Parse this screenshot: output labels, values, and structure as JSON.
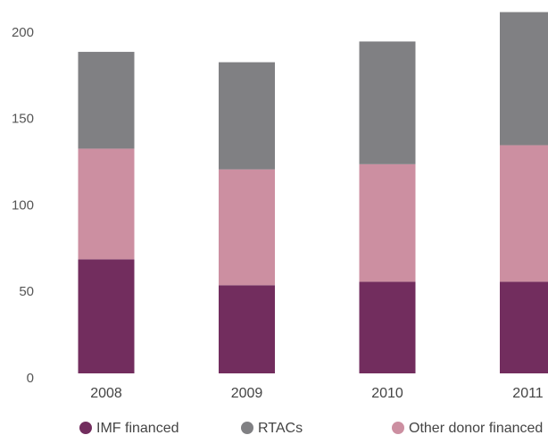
{
  "chart_data": {
    "type": "bar",
    "categories": [
      "2008",
      "2009",
      "2010",
      "2011"
    ],
    "series": [
      {
        "name": "IMF financed",
        "color": "#722d5e",
        "values": [
          66,
          51,
          53,
          53
        ]
      },
      {
        "name": "RTACs",
        "color": "#808083",
        "values": [
          56,
          62,
          71,
          77
        ]
      },
      {
        "name": "Other donor financed",
        "color": "#cc8fa1",
        "values": [
          64,
          67,
          68,
          79
        ]
      }
    ],
    "ylim": [
      0,
      216
    ],
    "yticks": [
      0,
      50,
      100,
      150,
      200
    ],
    "grid": false
  }
}
